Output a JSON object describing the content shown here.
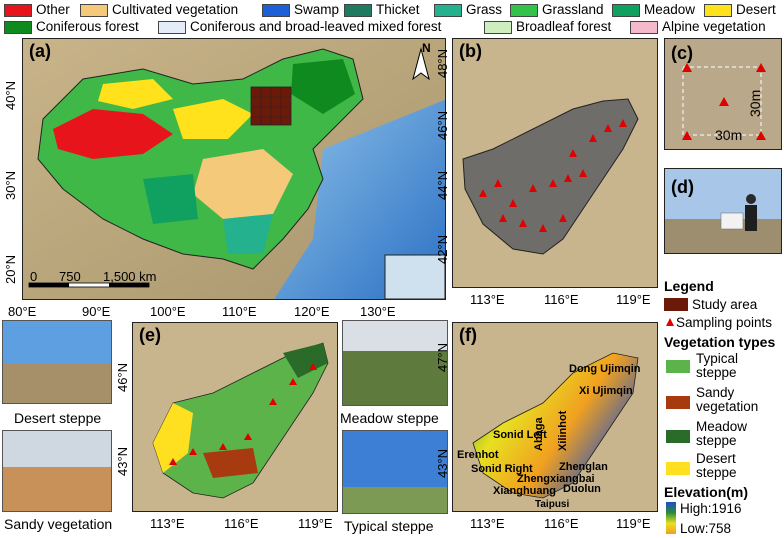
{
  "legend_top": [
    {
      "label": "Other",
      "color": "#e8141c"
    },
    {
      "label": "Cultivated vegetation",
      "color": "#f5c97a"
    },
    {
      "label": "Swamp",
      "color": "#1c5fd6"
    },
    {
      "label": "Thicket",
      "color": "#1f7a62"
    },
    {
      "label": "Grass",
      "color": "#23b28d"
    },
    {
      "label": "Grassland",
      "color": "#33c24a"
    },
    {
      "label": "Meadow",
      "color": "#10a060"
    },
    {
      "label": "Desert",
      "color": "#ffe21c"
    },
    {
      "label": "Coniferous forest",
      "color": "#0f8a1e"
    },
    {
      "label": "Coniferous and broad-leaved mixed forest",
      "color": "#e4ecf8"
    },
    {
      "label": "Broadleaf forest",
      "color": "#cdeebf"
    },
    {
      "label": "Alpine vegetation",
      "color": "#f5b9cc"
    }
  ],
  "panel_a": {
    "label": "(a)",
    "lat_ticks": [
      "40°N",
      "30°N",
      "20°N"
    ],
    "lon_ticks": [
      "80°E",
      "90°E",
      "100°E",
      "110°E",
      "120°E",
      "130°E"
    ],
    "scale_labels": [
      "0",
      "750",
      "1,500 km"
    ],
    "north": "N"
  },
  "panel_b": {
    "label": "(b)",
    "lat_ticks": [
      "48°N",
      "46°N",
      "44°N",
      "42°N"
    ],
    "lon_ticks": [
      "113°E",
      "116°E",
      "119°E"
    ]
  },
  "panel_c": {
    "label": "(c)",
    "dim_v": "30m",
    "dim_h": "30m"
  },
  "panel_d": {
    "label": "(d)"
  },
  "panel_e": {
    "label": "(e)",
    "lat_ticks": [
      "46°N",
      "43°N"
    ],
    "lon_ticks": [
      "113°E",
      "116°E",
      "119°E"
    ]
  },
  "panel_f": {
    "label": "(f)",
    "lat_ticks": [
      "47°N",
      "43°N"
    ],
    "lon_ticks": [
      "113°E",
      "116°E",
      "119°E"
    ],
    "places": [
      {
        "name": "Dong Ujimqin"
      },
      {
        "name": "Xi Ujimqin"
      },
      {
        "name": "Abaga"
      },
      {
        "name": "Xilinhot"
      },
      {
        "name": "Sonid Left"
      },
      {
        "name": "Erenhot"
      },
      {
        "name": "Sonid Right"
      },
      {
        "name": "Zhenglan"
      },
      {
        "name": "Zhengxiangbai"
      },
      {
        "name": "Xianghuang"
      },
      {
        "name": "Duolun"
      },
      {
        "name": "Taipusi"
      }
    ]
  },
  "photos": {
    "desert_steppe": "Desert steppe",
    "sandy_vegetation": "Sandy vegetation",
    "meadow_steppe": "Meadow steppe",
    "typical_steppe": "Typical steppe"
  },
  "legend_right": {
    "title": "Legend",
    "study_area": "Study area",
    "study_area_color": "#6b1a0a",
    "sampling_points": "Sampling points",
    "sampling_color": "#e00000",
    "veg_title": "Vegetation types",
    "veg_items": [
      {
        "label": "Typical steppe",
        "color": "#5cb34a"
      },
      {
        "label": "Sandy vegetation",
        "color": "#a83a10"
      },
      {
        "label": "Meadow steppe",
        "color": "#2a6b2a"
      },
      {
        "label": "Desert steppe",
        "color": "#ffe020"
      }
    ],
    "elev_title": "Elevation(m)",
    "elev_high": "High:1916",
    "elev_low": "Low:758"
  }
}
